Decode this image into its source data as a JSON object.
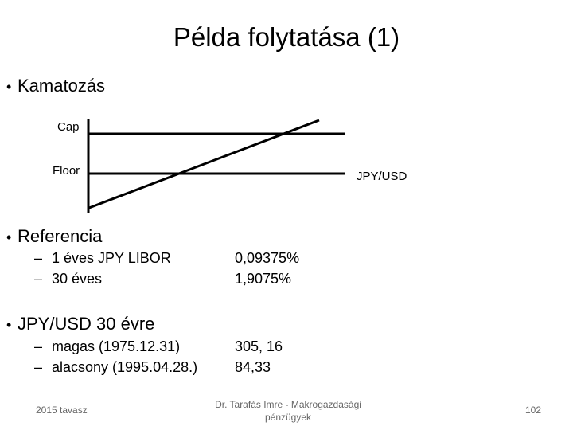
{
  "title": "Példa folytatása (1)",
  "bullets": [
    {
      "text": "Kamatozás",
      "diagram": {
        "cap_label": "Cap",
        "floor_label": "Floor",
        "axis_label": "JPY/USD"
      }
    },
    {
      "text": "Referencia",
      "items": [
        {
          "label": "1 éves JPY LIBOR",
          "value": "0,09375%"
        },
        {
          "label": "30 éves",
          "value": "1,9075%"
        }
      ]
    },
    {
      "text": "JPY/USD 30 évre",
      "items": [
        {
          "label": "magas (1975.12.31)",
          "value": "305, 16"
        },
        {
          "label": "alacsony (1995.04.28.)",
          "value": "84,33"
        }
      ]
    }
  ],
  "footer": {
    "left": "2015 tavasz",
    "center": "Dr. Tarafás Imre - Makrogazdasági pénzügyek",
    "page": "102"
  }
}
